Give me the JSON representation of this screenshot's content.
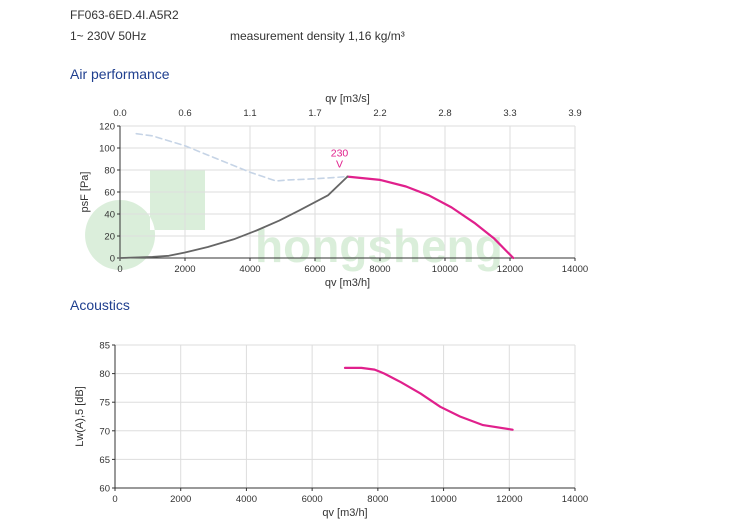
{
  "header": {
    "model": "FF063-6ED.4I.A5R2",
    "supply": "1~ 230V 50Hz",
    "density": "measurement density 1,16 kg/m³"
  },
  "sections": {
    "air": "Air performance",
    "acoustics": "Acoustics"
  },
  "colors": {
    "primary_curve": "#e0208c",
    "grey_curve": "#666666",
    "dashed_curve": "#c6d4e6",
    "grid": "#dddddd",
    "section_title": "#1f3f8f"
  },
  "chart_data": [
    {
      "type": "line",
      "title": "Air performance",
      "xlabel": "qv [m3/h]",
      "ylabel": "psF [Pa]",
      "x2label": "qv [m3/s]",
      "xlim": [
        0,
        14000
      ],
      "ylim": [
        0,
        120
      ],
      "xticks": [
        "0",
        "2000",
        "4000",
        "6000",
        "8000",
        "10000",
        "12000",
        "14000"
      ],
      "yticks": [
        "0",
        "20",
        "40",
        "60",
        "80",
        "100",
        "120"
      ],
      "x2ticks": [
        "0.0",
        "0.6",
        "1.1",
        "1.7",
        "2.2",
        "2.8",
        "3.3",
        "3.9"
      ],
      "grid": true,
      "curve_label": "230\nV",
      "series": [
        {
          "style": "magenta-solid",
          "x": [
            7000,
            8000,
            8800,
            9500,
            10200,
            10900,
            11500,
            12100
          ],
          "y": [
            74,
            71,
            65,
            57,
            46,
            32,
            18,
            0
          ]
        },
        {
          "style": "grey-solid",
          "x": [
            0,
            1000,
            1500,
            2000,
            2700,
            3500,
            4200,
            4900,
            5500,
            6400,
            7000
          ],
          "y": [
            0,
            1,
            2,
            5,
            10,
            17,
            25,
            34,
            43,
            57,
            74
          ]
        },
        {
          "style": "blue-dashed",
          "x": [
            500,
            1000,
            2000,
            3000,
            4000,
            4800,
            5200,
            6000,
            7000
          ],
          "y": [
            113,
            111,
            102,
            90,
            78,
            70,
            71,
            72,
            74
          ]
        }
      ]
    },
    {
      "type": "line",
      "title": "Acoustics",
      "xlabel": "qv [m3/h]",
      "ylabel": "Lw(A),5 [dB]",
      "xlim": [
        0,
        14000
      ],
      "ylim": [
        60,
        85
      ],
      "xticks": [
        "0",
        "2000",
        "4000",
        "6000",
        "8000",
        "10000",
        "12000",
        "14000"
      ],
      "yticks": [
        "60",
        "65",
        "70",
        "75",
        "80",
        "85"
      ],
      "grid": true,
      "series": [
        {
          "style": "magenta-solid",
          "x": [
            7000,
            7500,
            7900,
            8200,
            8700,
            9300,
            9900,
            10500,
            11200,
            12100
          ],
          "y": [
            81,
            81,
            80.7,
            80,
            78.5,
            76.5,
            74.2,
            72.5,
            71,
            70.2
          ]
        }
      ]
    }
  ]
}
